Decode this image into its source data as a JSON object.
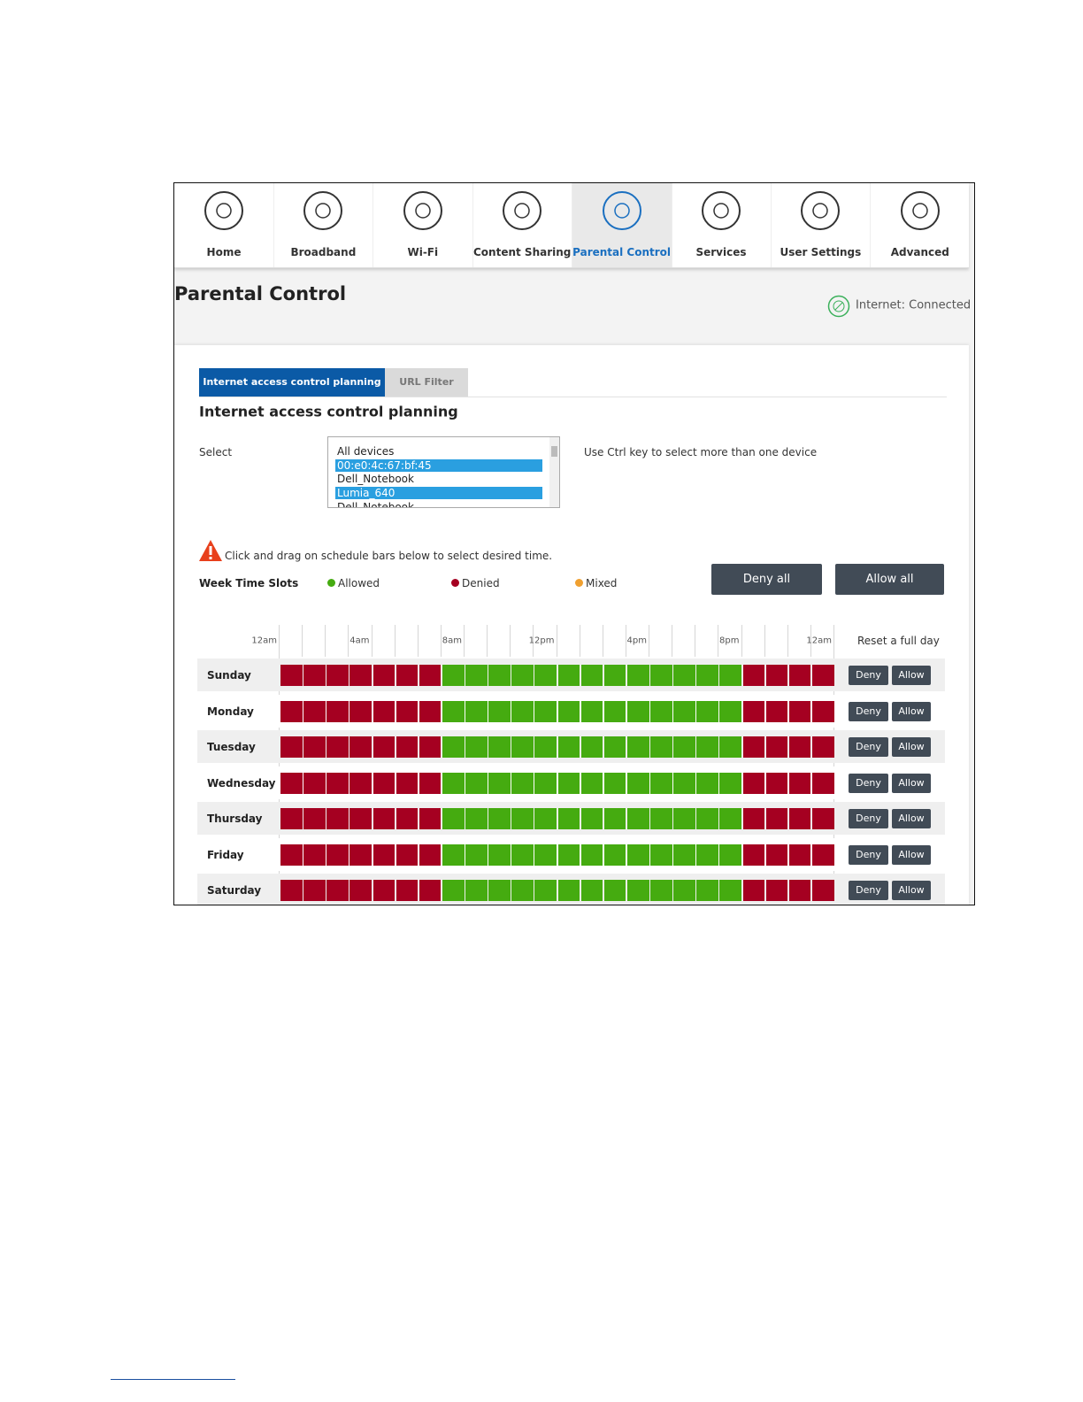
{
  "nav": [
    {
      "label": "Home"
    },
    {
      "label": "Broadband"
    },
    {
      "label": "Wi-Fi"
    },
    {
      "label": "Content Sharing"
    },
    {
      "label": "Parental Control",
      "active": true
    },
    {
      "label": "Services"
    },
    {
      "label": "User Settings"
    },
    {
      "label": "Advanced"
    }
  ],
  "page_title": "Parental Control",
  "status": "Internet: Connected",
  "tabs": [
    {
      "label": "Internet access control planning",
      "active": true
    },
    {
      "label": "URL Filter"
    }
  ],
  "heading": "Internet access control planning",
  "select": {
    "label": "Select",
    "options": [
      {
        "text": "All devices"
      },
      {
        "text": "00:e0:4c:67:bf:45",
        "selected": true
      },
      {
        "text": "Dell_Notebook"
      },
      {
        "text": "Lumia_640",
        "selected": true
      },
      {
        "text": "Dell_Notebook"
      }
    ],
    "hint": "Use Ctrl key to select more than one device"
  },
  "warning": "Click and drag on schedule bars below to select desired time.",
  "legend": {
    "title": "Week Time Slots",
    "items": [
      {
        "name": "Allowed",
        "color": "#45ab10"
      },
      {
        "name": "Denied",
        "color": "#a50021"
      },
      {
        "name": "Mixed",
        "color": "#f0a030"
      }
    ]
  },
  "buttons": {
    "deny_all": "Deny all",
    "allow_all": "Allow all",
    "deny": "Deny",
    "allow": "Allow"
  },
  "time_labels": [
    "12am",
    "4am",
    "8am",
    "12pm",
    "4pm",
    "8pm",
    "12am"
  ],
  "reset_label": "Reset a full day",
  "days": [
    {
      "name": "Sunday",
      "slots": [
        "#a50021",
        "#a50021",
        "#a50021",
        "#a50021",
        "#a50021",
        "#a50021",
        "#a50021",
        "#45ab10",
        "#45ab10",
        "#45ab10",
        "#45ab10",
        "#45ab10",
        "#45ab10",
        "#45ab10",
        "#45ab10",
        "#45ab10",
        "#45ab10",
        "#45ab10",
        "#45ab10",
        "#45ab10",
        "#a50021",
        "#a50021",
        "#a50021",
        "#a50021"
      ]
    },
    {
      "name": "Monday",
      "slots": [
        "#a50021",
        "#a50021",
        "#a50021",
        "#a50021",
        "#a50021",
        "#a50021",
        "#a50021",
        "#45ab10",
        "#45ab10",
        "#45ab10",
        "#45ab10",
        "#45ab10",
        "#45ab10",
        "#45ab10",
        "#45ab10",
        "#45ab10",
        "#45ab10",
        "#45ab10",
        "#45ab10",
        "#45ab10",
        "#a50021",
        "#a50021",
        "#a50021",
        "#a50021"
      ]
    },
    {
      "name": "Tuesday",
      "slots": [
        "#a50021",
        "#a50021",
        "#a50021",
        "#a50021",
        "#a50021",
        "#a50021",
        "#a50021",
        "#45ab10",
        "#45ab10",
        "#45ab10",
        "#45ab10",
        "#45ab10",
        "#45ab10",
        "#45ab10",
        "#45ab10",
        "#45ab10",
        "#45ab10",
        "#45ab10",
        "#45ab10",
        "#45ab10",
        "#a50021",
        "#a50021",
        "#a50021",
        "#a50021"
      ]
    },
    {
      "name": "Wednesday",
      "slots": [
        "#a50021",
        "#a50021",
        "#a50021",
        "#a50021",
        "#a50021",
        "#a50021",
        "#a50021",
        "#45ab10",
        "#45ab10",
        "#45ab10",
        "#45ab10",
        "#45ab10",
        "#45ab10",
        "#45ab10",
        "#45ab10",
        "#45ab10",
        "#45ab10",
        "#45ab10",
        "#45ab10",
        "#45ab10",
        "#a50021",
        "#a50021",
        "#a50021",
        "#a50021"
      ]
    },
    {
      "name": "Thursday",
      "slots": [
        "#a50021",
        "#a50021",
        "#a50021",
        "#a50021",
        "#a50021",
        "#a50021",
        "#a50021",
        "#45ab10",
        "#45ab10",
        "#45ab10",
        "#45ab10",
        "#45ab10",
        "#45ab10",
        "#45ab10",
        "#45ab10",
        "#45ab10",
        "#45ab10",
        "#45ab10",
        "#45ab10",
        "#45ab10",
        "#a50021",
        "#a50021",
        "#a50021",
        "#a50021"
      ]
    },
    {
      "name": "Friday",
      "slots": [
        "#a50021",
        "#a50021",
        "#a50021",
        "#a50021",
        "#a50021",
        "#a50021",
        "#a50021",
        "#45ab10",
        "#45ab10",
        "#45ab10",
        "#45ab10",
        "#45ab10",
        "#45ab10",
        "#45ab10",
        "#45ab10",
        "#45ab10",
        "#45ab10",
        "#45ab10",
        "#45ab10",
        "#45ab10",
        "#a50021",
        "#a50021",
        "#a50021",
        "#a50021"
      ]
    },
    {
      "name": "Saturday",
      "slots": [
        "#a50021",
        "#a50021",
        "#a50021",
        "#a50021",
        "#a50021",
        "#a50021",
        "#a50021",
        "#45ab10",
        "#45ab10",
        "#45ab10",
        "#45ab10",
        "#45ab10",
        "#45ab10",
        "#45ab10",
        "#45ab10",
        "#45ab10",
        "#45ab10",
        "#45ab10",
        "#45ab10",
        "#45ab10",
        "#a50021",
        "#a50021",
        "#a50021",
        "#a50021"
      ]
    }
  ]
}
